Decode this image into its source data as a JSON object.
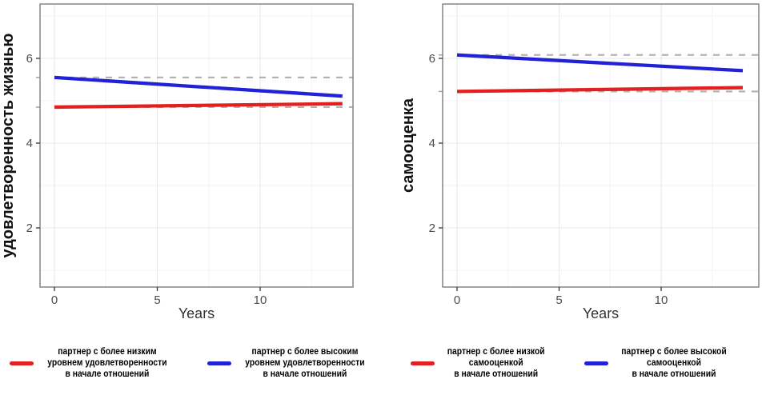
{
  "chart_data": [
    {
      "type": "line",
      "title": "",
      "ylabel": "удовлетворенность жизнью",
      "xlabel": "Years",
      "x_ticks": [
        0,
        5,
        10
      ],
      "y_ticks": [
        2,
        4,
        6
      ],
      "xlim": [
        -0.7,
        14.5
      ],
      "ylim": [
        0.7,
        7.3
      ],
      "x": [
        0,
        14
      ],
      "grid": true,
      "legend_position": "bottom",
      "series": [
        {
          "name": "партнер с более низким уровнем удовлетворенности в начале отношений",
          "legend_lines": [
            "партнер с более низким",
            "уровнем удовлетворенности",
            "в начале отношений"
          ],
          "color": "#e3201f",
          "values": [
            4.85,
            4.93
          ]
        },
        {
          "name": "партнер с более высоким уровнем удовлетворенности в начале отношений",
          "legend_lines": [
            "партнер с более высоким",
            "уровнем удовлетворенности",
            "в начале отношений"
          ],
          "color": "#2121d8",
          "values": [
            5.55,
            5.11
          ]
        }
      ],
      "reference_lines": [
        {
          "y": 5.55,
          "style": "dashed",
          "color": "#b3b3b3"
        },
        {
          "y": 4.85,
          "style": "dashed",
          "color": "#b3b3b3"
        }
      ]
    },
    {
      "type": "line",
      "title": "",
      "ylabel": "самооценка",
      "xlabel": "Years",
      "x_ticks": [
        0,
        5,
        10
      ],
      "y_ticks": [
        2,
        4,
        6
      ],
      "xlim": [
        -0.7,
        14.8
      ],
      "ylim": [
        0.7,
        7.3
      ],
      "x": [
        0,
        14
      ],
      "grid": true,
      "legend_position": "bottom",
      "series": [
        {
          "name": "партнер с более низкой самооценкой в начале отношений",
          "legend_lines": [
            "партнер с более низкой",
            "самооценкой",
            "в начале отношений"
          ],
          "color": "#e3201f",
          "values": [
            5.22,
            5.31
          ]
        },
        {
          "name": "партнер с более высокой самооценкой в начале отношений",
          "legend_lines": [
            "партнер с более высокой",
            "самооценкой",
            "в начале отношений"
          ],
          "color": "#2121d8",
          "values": [
            6.08,
            5.71
          ]
        }
      ],
      "reference_lines": [
        {
          "y": 6.08,
          "style": "dashed",
          "color": "#b3b3b3"
        },
        {
          "y": 5.22,
          "style": "dashed",
          "color": "#b3b3b3"
        }
      ]
    }
  ]
}
